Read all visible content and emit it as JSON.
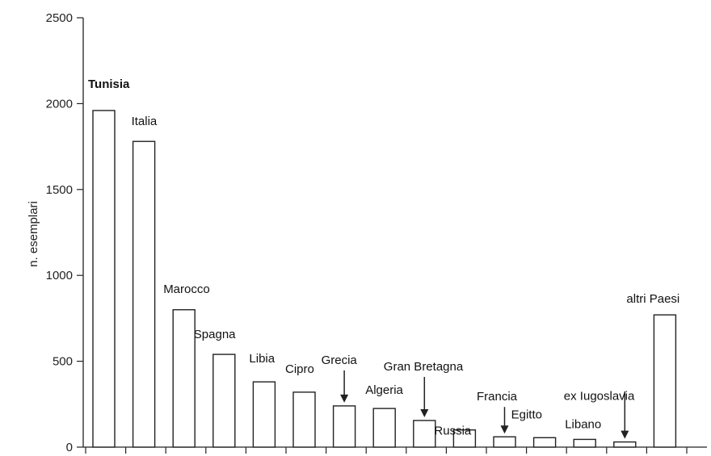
{
  "chart_data": {
    "type": "bar",
    "title": "",
    "xlabel": "",
    "ylabel": "n. esemplari",
    "ylim": [
      0,
      2500
    ],
    "yticks": [
      0,
      500,
      1000,
      1500,
      2000,
      2500
    ],
    "grid": false,
    "categories": [
      "Tunisia",
      "Italia",
      "Marocco",
      "Spagna",
      "Libia",
      "Cipro",
      "Grecia",
      "Algeria",
      "Gran Bretagna",
      "Russia",
      "Francia",
      "Egitto",
      "Libano",
      "ex Iugoslavia",
      "altri Paesi"
    ],
    "values": [
      1960,
      1780,
      800,
      540,
      380,
      320,
      240,
      225,
      155,
      100,
      60,
      55,
      45,
      30,
      770
    ]
  }
}
